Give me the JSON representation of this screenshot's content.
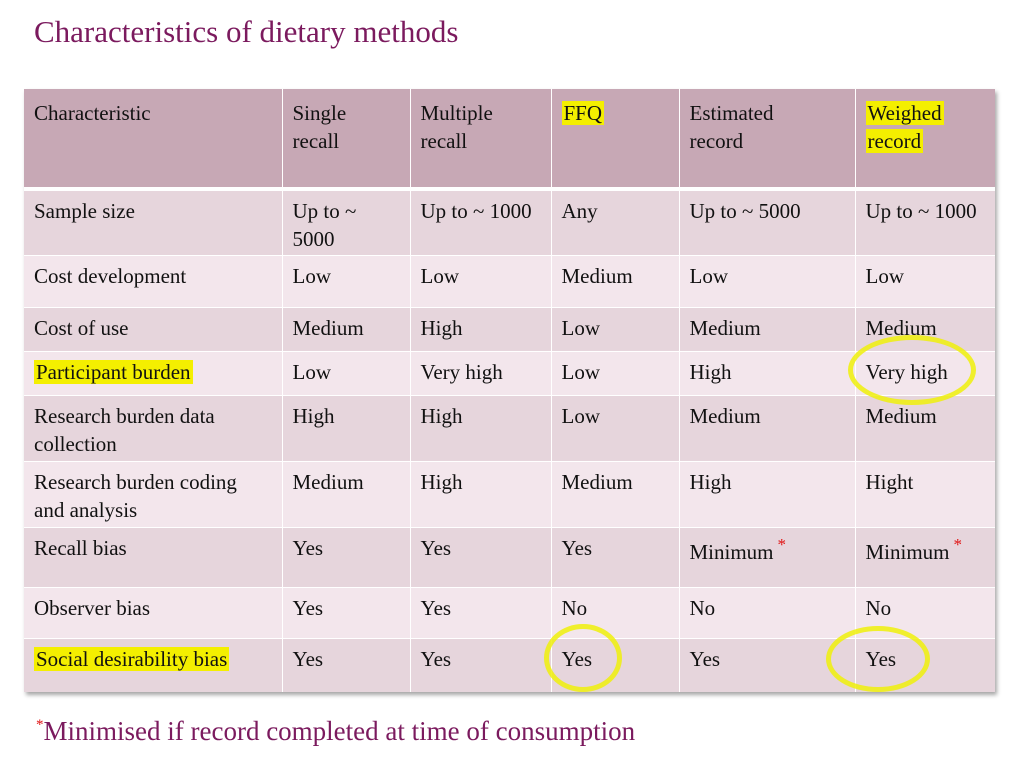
{
  "title": "Characteristics of dietary methods",
  "table": {
    "headers": [
      "Characteristic",
      "Single recall",
      "Multiple recall",
      "FFQ",
      "Estimated record",
      "Weighed record"
    ],
    "header_lines": [
      [
        "Characteristic",
        ""
      ],
      [
        "Single",
        "recall"
      ],
      [
        "Multiple",
        "recall"
      ],
      [
        "FFQ",
        ""
      ],
      [
        "Estimated",
        "record"
      ],
      [
        "Weighed",
        "record"
      ]
    ],
    "rows": [
      {
        "label": "Sample size",
        "values": [
          "Up to ~ 5000",
          "Up to ~ 1000",
          "Any",
          "Up to ~ 5000",
          "Up to ~ 1000"
        ]
      },
      {
        "label": "Cost development",
        "values": [
          "Low",
          "Low",
          "Medium",
          "Low",
          "Low"
        ]
      },
      {
        "label": "Cost of use",
        "values": [
          "Medium",
          "High",
          "Low",
          "Medium",
          "Medium"
        ]
      },
      {
        "label": "Participant burden",
        "values": [
          "Low",
          "Very high",
          "Low",
          "High",
          "Very high"
        ]
      },
      {
        "label": "Research burden data collection",
        "values": [
          "High",
          "High",
          "Low",
          "Medium",
          "Medium"
        ]
      },
      {
        "label": "Research burden coding and analysis",
        "values": [
          "Medium",
          "High",
          "Medium",
          "High",
          "Hight"
        ]
      },
      {
        "label": "Recall bias",
        "values": [
          "Yes",
          "Yes",
          "Yes",
          "Minimum",
          "Minimum"
        ]
      },
      {
        "label": "Observer bias",
        "values": [
          "Yes",
          "Yes",
          "No",
          "No",
          "No"
        ]
      },
      {
        "label": "Social desirability bias",
        "values": [
          "Yes",
          "Yes",
          "Yes",
          "Yes",
          "Yes"
        ]
      }
    ],
    "asterisk": "*"
  },
  "footnote": {
    "marker": "*",
    "text": "Minimised if record completed at time of consumption"
  },
  "colors": {
    "title": "#7b1a5e",
    "header_bg": "#c7a8b5",
    "row_dark": "#e6d5dc",
    "row_light": "#f3e6ec",
    "highlight": "#f4ef00",
    "asterisk": "#e01010"
  }
}
